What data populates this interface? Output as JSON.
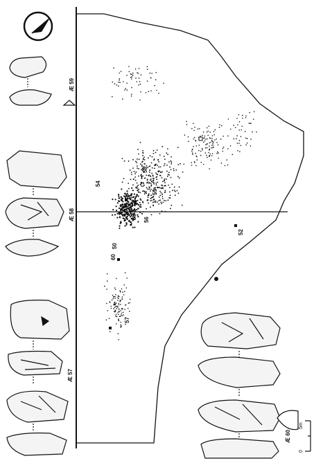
{
  "figure": {
    "colors": {
      "ink": "#111111",
      "paper": "#ffffff"
    },
    "north_arrow_icon": "north-arrow-icon",
    "artifact_labels": {
      "a57": "Æ 57",
      "a58": "Æ 58",
      "a59": "Æ 59",
      "a60": "Æ 60"
    },
    "map_labels": [
      "60",
      "57",
      "54",
      "58",
      "59",
      "55",
      "56",
      "50",
      "52"
    ],
    "scale": {
      "zero": "0",
      "five": "5m"
    }
  }
}
